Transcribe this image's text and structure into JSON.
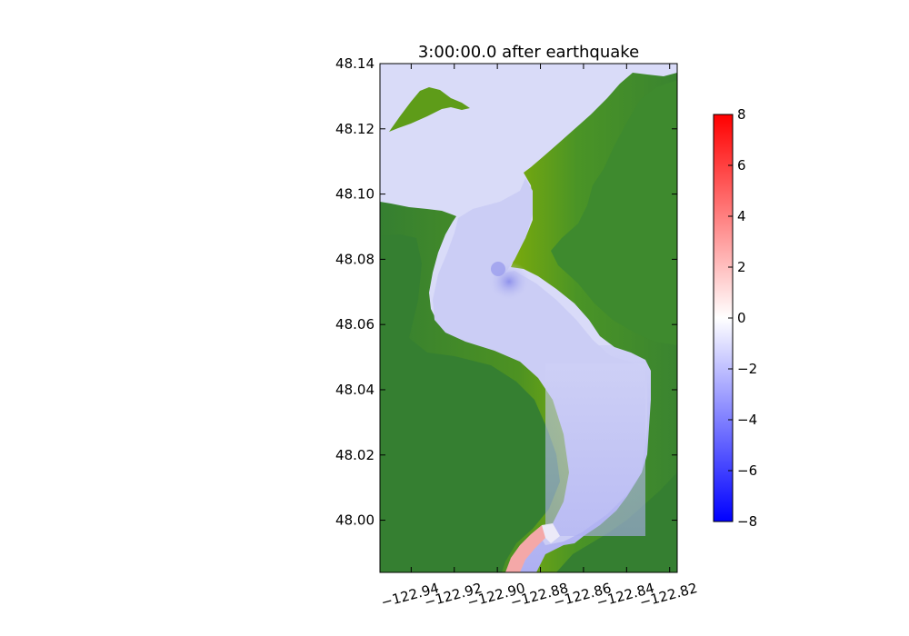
{
  "chart_data": {
    "type": "heatmap",
    "title": "3:00:00.0 after earthquake",
    "xlabel": "",
    "ylabel": "",
    "x_ticks": [
      -122.94,
      -122.92,
      -122.9,
      -122.88,
      -122.86,
      -122.84,
      -122.82
    ],
    "x_tick_labels": [
      "−122.94",
      "−122.92",
      "−122.90",
      "−122.88",
      "−122.86",
      "−122.84",
      "−122.82"
    ],
    "y_ticks": [
      48.0,
      48.02,
      48.04,
      48.06,
      48.08,
      48.1,
      48.12,
      48.14
    ],
    "y_tick_labels": [
      "48.00",
      "48.02",
      "48.04",
      "48.06",
      "48.08",
      "48.10",
      "48.12",
      "48.14"
    ],
    "xlim": [
      -122.9545,
      -122.8165
    ],
    "ylim": [
      47.984,
      48.14
    ],
    "colorbar": {
      "ticks": [
        -8,
        -6,
        -4,
        -2,
        0,
        2,
        4,
        6,
        8
      ],
      "tick_labels": [
        "−8",
        "−6",
        "−4",
        "−2",
        "0",
        "2",
        "4",
        "6",
        "8"
      ],
      "range": [
        -8,
        8
      ],
      "colormap": "blue-white-red"
    },
    "colors": {
      "land_dark": "#357f31",
      "land_light": "#6ca513",
      "water": "#d8daf8",
      "water_deep": "#b7b9f4",
      "positive": "#f5a5a5"
    }
  }
}
